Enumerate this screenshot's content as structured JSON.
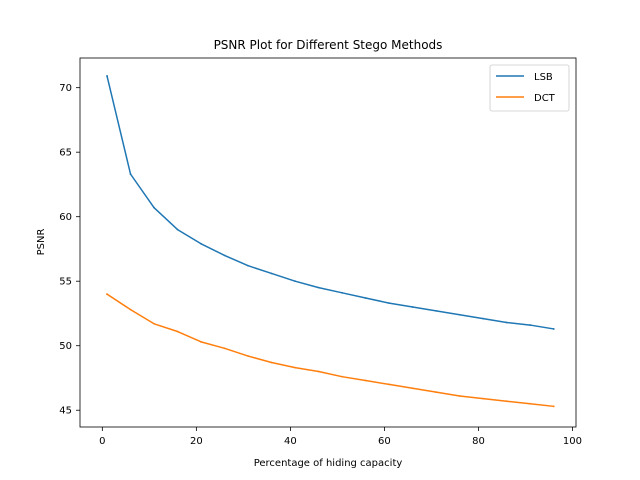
{
  "chart_data": {
    "type": "line",
    "title": "PSNR Plot for Different Stego Methods",
    "xlabel": "Percentage of hiding capacity",
    "ylabel": "PSNR",
    "xlim": [
      -4.75,
      100.75
    ],
    "ylim": [
      43.7,
      72.3
    ],
    "xticks": [
      0,
      20,
      40,
      60,
      80,
      100
    ],
    "yticks": [
      45,
      50,
      55,
      60,
      65,
      70
    ],
    "grid": false,
    "legend_position": "top-right",
    "x": [
      1,
      6,
      11,
      16,
      21,
      26,
      31,
      36,
      41,
      46,
      51,
      56,
      61,
      66,
      71,
      76,
      81,
      86,
      91,
      96
    ],
    "series": [
      {
        "name": "LSB",
        "color": "#1f77b4",
        "values": [
          70.9,
          63.3,
          60.7,
          59.0,
          57.9,
          57.0,
          56.2,
          55.6,
          55.0,
          54.5,
          54.1,
          53.7,
          53.3,
          53.0,
          52.7,
          52.4,
          52.1,
          51.8,
          51.6,
          51.3
        ]
      },
      {
        "name": "DCT",
        "color": "#ff7f0e",
        "values": [
          54.0,
          52.8,
          51.7,
          51.1,
          50.3,
          49.8,
          49.2,
          48.7,
          48.3,
          48.0,
          47.6,
          47.3,
          47.0,
          46.7,
          46.4,
          46.1,
          45.9,
          45.7,
          45.5,
          45.3
        ]
      }
    ]
  }
}
